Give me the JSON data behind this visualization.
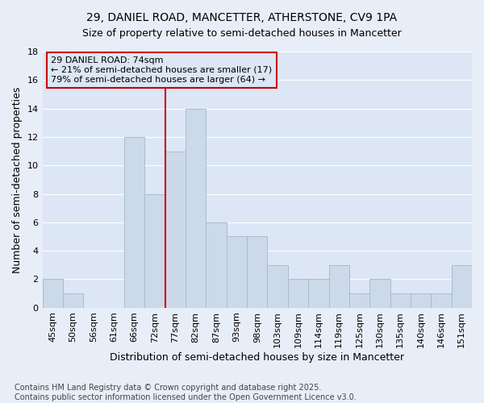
{
  "title": "29, DANIEL ROAD, MANCETTER, ATHERSTONE, CV9 1PA",
  "subtitle": "Size of property relative to semi-detached houses in Mancetter",
  "xlabel": "Distribution of semi-detached houses by size in Mancetter",
  "ylabel": "Number of semi-detached properties",
  "footnote": "Contains HM Land Registry data © Crown copyright and database right 2025.\nContains public sector information licensed under the Open Government Licence v3.0.",
  "categories": [
    "45sqm",
    "50sqm",
    "56sqm",
    "61sqm",
    "66sqm",
    "72sqm",
    "77sqm",
    "82sqm",
    "87sqm",
    "93sqm",
    "98sqm",
    "103sqm",
    "109sqm",
    "114sqm",
    "119sqm",
    "125sqm",
    "130sqm",
    "135sqm",
    "140sqm",
    "146sqm",
    "151sqm"
  ],
  "values": [
    2,
    1,
    0,
    0,
    12,
    8,
    11,
    14,
    6,
    5,
    5,
    3,
    2,
    2,
    3,
    1,
    2,
    1,
    1,
    1,
    3
  ],
  "bar_color": "#ccd9e8",
  "bar_edge_color": "#aabbd0",
  "vline_x_idx": 6,
  "vline_color": "#cc0000",
  "annotation_text": "29 DANIEL ROAD: 74sqm\n← 21% of semi-detached houses are smaller (17)\n79% of semi-detached houses are larger (64) →",
  "annotation_box_color": "#cc0000",
  "ylim": [
    0,
    18
  ],
  "yticks": [
    0,
    2,
    4,
    6,
    8,
    10,
    12,
    14,
    16,
    18
  ],
  "background_color": "#e8eef8",
  "plot_bg_color": "#dce6f5",
  "grid_color": "#ffffff",
  "title_fontsize": 10,
  "subtitle_fontsize": 9,
  "axis_label_fontsize": 9,
  "tick_fontsize": 8,
  "annotation_fontsize": 8,
  "footnote_fontsize": 7
}
